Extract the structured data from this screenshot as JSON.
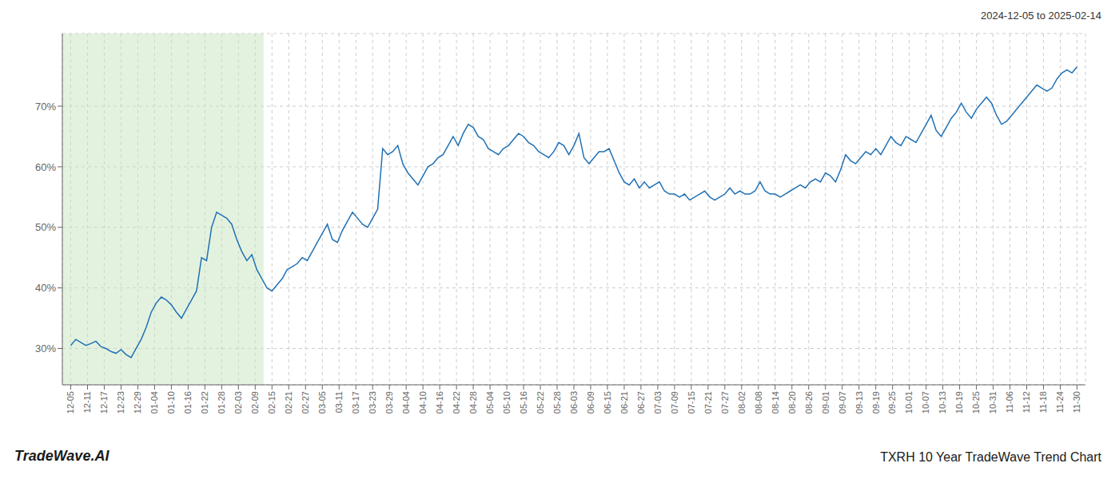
{
  "chart_data": {
    "type": "line",
    "title": "TXRH 10 Year TradeWave Trend Chart",
    "subtitle": "2024-12-05 to 2025-02-14",
    "annotations": [
      "TradeWave.AI"
    ],
    "color": "#2171b5",
    "grid": true,
    "highlight": {
      "from": -0.5,
      "to": 11.5,
      "color": "#c8e6c0"
    },
    "xlim": [
      -0.5,
      60.5
    ],
    "xticks": [
      {
        "value": 0,
        "label": "12-05"
      },
      {
        "value": 1,
        "label": "12-11"
      },
      {
        "value": 2,
        "label": "12-17"
      },
      {
        "value": 3,
        "label": "12-23"
      },
      {
        "value": 4,
        "label": "12-29"
      },
      {
        "value": 5,
        "label": "01-04"
      },
      {
        "value": 6,
        "label": "01-10"
      },
      {
        "value": 7,
        "label": "01-16"
      },
      {
        "value": 8,
        "label": "01-22"
      },
      {
        "value": 9,
        "label": "01-28"
      },
      {
        "value": 10,
        "label": "02-03"
      },
      {
        "value": 11,
        "label": "02-09"
      },
      {
        "value": 12,
        "label": "02-15"
      },
      {
        "value": 13,
        "label": "02-21"
      },
      {
        "value": 14,
        "label": "02-27"
      },
      {
        "value": 15,
        "label": "03-05"
      },
      {
        "value": 16,
        "label": "03-11"
      },
      {
        "value": 17,
        "label": "03-17"
      },
      {
        "value": 18,
        "label": "03-23"
      },
      {
        "value": 19,
        "label": "03-29"
      },
      {
        "value": 20,
        "label": "04-04"
      },
      {
        "value": 21,
        "label": "04-10"
      },
      {
        "value": 22,
        "label": "04-16"
      },
      {
        "value": 23,
        "label": "04-22"
      },
      {
        "value": 24,
        "label": "04-28"
      },
      {
        "value": 25,
        "label": "05-04"
      },
      {
        "value": 26,
        "label": "05-10"
      },
      {
        "value": 27,
        "label": "05-16"
      },
      {
        "value": 28,
        "label": "05-22"
      },
      {
        "value": 29,
        "label": "05-28"
      },
      {
        "value": 30,
        "label": "06-03"
      },
      {
        "value": 31,
        "label": "06-09"
      },
      {
        "value": 32,
        "label": "06-15"
      },
      {
        "value": 33,
        "label": "06-21"
      },
      {
        "value": 34,
        "label": "06-27"
      },
      {
        "value": 35,
        "label": "07-03"
      },
      {
        "value": 36,
        "label": "07-09"
      },
      {
        "value": 37,
        "label": "07-15"
      },
      {
        "value": 38,
        "label": "07-21"
      },
      {
        "value": 39,
        "label": "07-27"
      },
      {
        "value": 40,
        "label": "08-02"
      },
      {
        "value": 41,
        "label": "08-08"
      },
      {
        "value": 42,
        "label": "08-14"
      },
      {
        "value": 43,
        "label": "08-20"
      },
      {
        "value": 44,
        "label": "08-26"
      },
      {
        "value": 45,
        "label": "09-01"
      },
      {
        "value": 46,
        "label": "09-07"
      },
      {
        "value": 47,
        "label": "09-13"
      },
      {
        "value": 48,
        "label": "09-19"
      },
      {
        "value": 49,
        "label": "09-25"
      },
      {
        "value": 50,
        "label": "10-01"
      },
      {
        "value": 51,
        "label": "10-07"
      },
      {
        "value": 52,
        "label": "10-13"
      },
      {
        "value": 53,
        "label": "10-19"
      },
      {
        "value": 54,
        "label": "10-25"
      },
      {
        "value": 55,
        "label": "10-31"
      },
      {
        "value": 56,
        "label": "11-06"
      },
      {
        "value": 57,
        "label": "11-12"
      },
      {
        "value": 58,
        "label": "11-18"
      },
      {
        "value": 59,
        "label": "11-24"
      },
      {
        "value": 60,
        "label": "11-30"
      }
    ],
    "ylim": [
      24,
      82
    ],
    "yticks": [
      {
        "value": 30,
        "label": "30%"
      },
      {
        "value": 40,
        "label": "40%"
      },
      {
        "value": 50,
        "label": "50%"
      },
      {
        "value": 60,
        "label": "60%"
      },
      {
        "value": 70,
        "label": "70%"
      }
    ],
    "x": [
      0,
      0.3,
      0.6,
      0.9,
      1.2,
      1.5,
      1.8,
      2.1,
      2.4,
      2.7,
      3,
      3.3,
      3.6,
      3.9,
      4.2,
      4.5,
      4.8,
      5.1,
      5.4,
      5.7,
      6,
      6.3,
      6.6,
      6.9,
      7.2,
      7.5,
      7.8,
      8.1,
      8.4,
      8.7,
      9,
      9.3,
      9.6,
      9.9,
      10.2,
      10.5,
      10.8,
      11.1,
      11.4,
      11.7,
      12,
      12.3,
      12.6,
      12.9,
      13.2,
      13.5,
      13.8,
      14.1,
      14.4,
      14.7,
      15,
      15.3,
      15.6,
      15.9,
      16.2,
      16.5,
      16.8,
      17.1,
      17.4,
      17.7,
      18,
      18.3,
      18.6,
      18.9,
      19.2,
      19.5,
      19.8,
      20.1,
      20.4,
      20.7,
      21,
      21.3,
      21.6,
      21.9,
      22.2,
      22.5,
      22.8,
      23.1,
      23.4,
      23.7,
      24,
      24.3,
      24.6,
      24.9,
      25.2,
      25.5,
      25.8,
      26.1,
      26.4,
      26.7,
      27,
      27.3,
      27.6,
      27.9,
      28.2,
      28.5,
      28.8,
      29.1,
      29.4,
      29.7,
      30,
      30.3,
      30.6,
      30.9,
      31.2,
      31.5,
      31.8,
      32.1,
      32.4,
      32.7,
      33,
      33.3,
      33.6,
      33.9,
      34.2,
      34.5,
      34.8,
      35.1,
      35.4,
      35.7,
      36,
      36.3,
      36.6,
      36.9,
      37.2,
      37.5,
      37.8,
      38.1,
      38.4,
      38.7,
      39,
      39.3,
      39.6,
      39.9,
      40.2,
      40.5,
      40.8,
      41.1,
      41.4,
      41.7,
      42,
      42.3,
      42.6,
      42.9,
      43.2,
      43.5,
      43.8,
      44.1,
      44.4,
      44.7,
      45,
      45.3,
      45.6,
      45.9,
      46.2,
      46.5,
      46.8,
      47.1,
      47.4,
      47.7,
      48,
      48.3,
      48.6,
      48.9,
      49.2,
      49.5,
      49.8,
      50.1,
      50.4,
      50.7,
      51,
      51.3,
      51.6,
      51.9,
      52.2,
      52.5,
      52.8,
      53.1,
      53.4,
      53.7,
      54,
      54.3,
      54.6,
      54.9,
      55.2,
      55.5,
      55.8,
      56.1,
      56.4,
      56.7,
      57,
      57.3,
      57.6,
      57.9,
      58.2,
      58.5,
      58.8,
      59.1,
      59.4,
      59.7,
      60
    ],
    "values": [
      30.5,
      31.5,
      31.0,
      30.5,
      30.8,
      31.2,
      30.3,
      30.0,
      29.5,
      29.2,
      29.8,
      29.0,
      28.5,
      30.0,
      31.5,
      33.5,
      36.0,
      37.5,
      38.5,
      38.0,
      37.2,
      36.0,
      35.0,
      36.5,
      38.0,
      39.5,
      45.0,
      44.5,
      50.0,
      52.5,
      52.0,
      51.5,
      50.5,
      48.0,
      46.0,
      44.5,
      45.5,
      43.0,
      41.5,
      40.0,
      39.5,
      40.5,
      41.5,
      43.0,
      43.5,
      44.0,
      45.0,
      44.5,
      46.0,
      47.5,
      49.0,
      50.5,
      48.0,
      47.5,
      49.5,
      51.0,
      52.5,
      51.5,
      50.5,
      50.0,
      51.5,
      53.0,
      63.0,
      62.0,
      62.5,
      63.5,
      60.5,
      59.0,
      58.0,
      57.0,
      58.5,
      60.0,
      60.5,
      61.5,
      62.0,
      63.5,
      65.0,
      63.5,
      65.5,
      67.0,
      66.5,
      65.0,
      64.5,
      63.0,
      62.5,
      62.0,
      63.0,
      63.5,
      64.5,
      65.5,
      65.0,
      64.0,
      63.5,
      62.5,
      62.0,
      61.5,
      62.5,
      64.0,
      63.5,
      62.0,
      63.5,
      65.5,
      61.5,
      60.5,
      61.5,
      62.5,
      62.5,
      63.0,
      61.0,
      59.0,
      57.5,
      57.0,
      58.0,
      56.5,
      57.5,
      56.5,
      57.0,
      57.5,
      56.0,
      55.5,
      55.5,
      55.0,
      55.5,
      54.5,
      55.0,
      55.5,
      56.0,
      55.0,
      54.5,
      55.0,
      55.5,
      56.5,
      55.5,
      56.0,
      55.5,
      55.5,
      56.0,
      57.5,
      56.0,
      55.5,
      55.5,
      55.0,
      55.5,
      56.0,
      56.5,
      57.0,
      56.5,
      57.5,
      58.0,
      57.5,
      59.0,
      58.5,
      57.5,
      59.5,
      62.0,
      61.0,
      60.5,
      61.5,
      62.5,
      62.0,
      63.0,
      62.0,
      63.5,
      65.0,
      64.0,
      63.5,
      65.0,
      64.5,
      64.0,
      65.5,
      67.0,
      68.5,
      66.0,
      65.0,
      66.5,
      68.0,
      69.0,
      70.5,
      69.0,
      68.0,
      69.5,
      70.5,
      71.5,
      70.5,
      68.5,
      67.0,
      67.5,
      68.5,
      69.5,
      70.5,
      71.5,
      72.5,
      73.5,
      73.0,
      72.5,
      73.0,
      74.5,
      75.5,
      76.0,
      75.5,
      76.5
    ]
  }
}
